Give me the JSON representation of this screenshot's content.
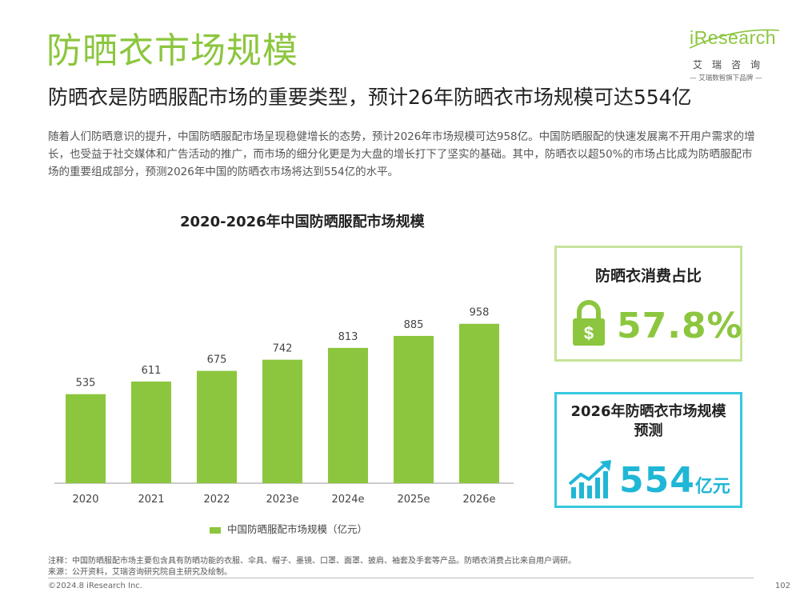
{
  "header": {
    "title": "防晒衣市场规模",
    "subtitle": "防晒衣是防晒服配市场的重要类型，预计26年防晒衣市场规模可达554亿"
  },
  "logo": {
    "brand": "iResearch",
    "cn_name": "艾瑞咨询",
    "tagline": "— 艾瑞数智旗下品牌 —"
  },
  "intro": "随着人们防晒意识的提升，中国防晒服配市场呈现稳健增长的态势，预计2026年市场规模可达958亿。中国防晒服配的快速发展离不开用户需求的增长，也受益于社交媒体和广告活动的推广，而市场的细分化更是为大盘的增长打下了坚实的基础。其中，防晒衣以超50%的市场占比成为防晒服配市场的重要组成部分，预测2026年中国的防晒衣市场将达到554亿的水平。",
  "chart_data": {
    "type": "bar",
    "title": "2020-2026年中国防晒服配市场规模",
    "categories": [
      "2020",
      "2021",
      "2022",
      "2023e",
      "2024e",
      "2025e",
      "2026e"
    ],
    "series": [
      {
        "name": "中国防晒服配市场规模（亿元）",
        "values": [
          535,
          611,
          675,
          742,
          813,
          885,
          958
        ]
      }
    ],
    "ylim": [
      0,
      1000
    ],
    "grid": false,
    "legend": "bottom",
    "bar_color": "#8cc63e"
  },
  "cards": {
    "share": {
      "title": "防晒衣消费占比",
      "value": "57.8%",
      "icon": "lock-dollar-icon",
      "color": "#8cc63e"
    },
    "forecast": {
      "title_line1": "2026年防晒衣市场规模",
      "title_line2": "预测",
      "value": "554",
      "unit": "亿元",
      "icon": "growth-chart-icon",
      "color": "#20b7d6"
    }
  },
  "footer": {
    "note": "注释：中国防晒服配市场主要包含具有防晒功能的衣服、伞具、帽子、墨镜、口罩、面罩、披肩、袖套及手套等产品。防晒衣消费占比来自用户调研。",
    "source": "来源：公开资料，艾瑞咨询研究院自主研究及绘制。",
    "copyright": "©2024.8 iResearch Inc.",
    "page": "102"
  }
}
